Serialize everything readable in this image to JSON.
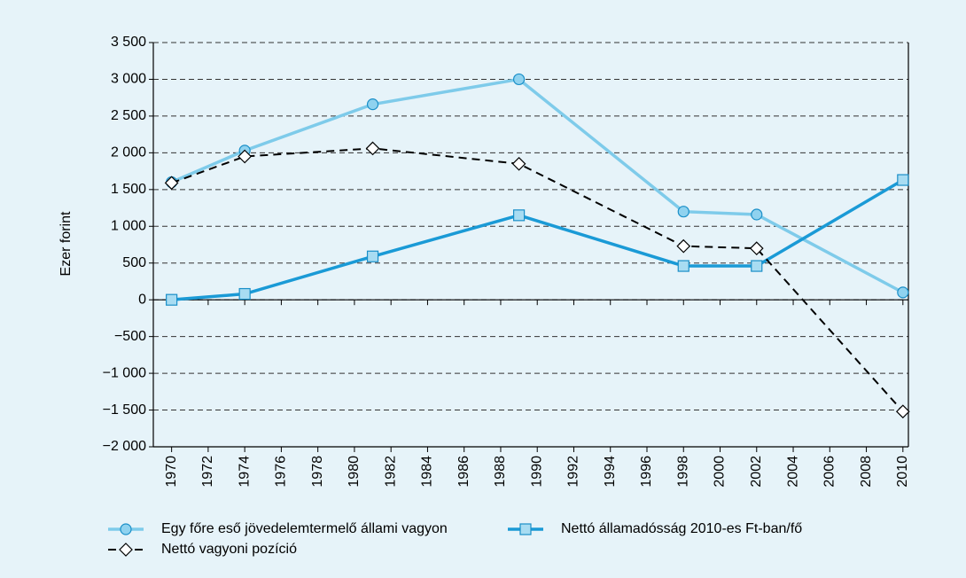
{
  "chart_data": {
    "type": "line",
    "y_label": "Ezer forint",
    "x": [
      1970,
      1974,
      1981,
      1989,
      1998,
      2002,
      2010
    ],
    "series": [
      {
        "name": "Egy főre eső jövedelemtermelő állami vagyon",
        "color": "#7ecbea",
        "marker": "circle",
        "line_style": "solid",
        "values": [
          1600,
          2030,
          2660,
          3000,
          1200,
          1160,
          100
        ]
      },
      {
        "name": "Nettó államadósság 2010-es Ft-ban/fő",
        "color": "#1a9ad6",
        "marker": "square",
        "line_style": "solid",
        "values": [
          0,
          80,
          590,
          1150,
          460,
          460,
          1630
        ]
      },
      {
        "name": "Nettó vagyoni pozíció",
        "color": "#000000",
        "marker": "diamond",
        "line_style": "dashed",
        "values": [
          1590,
          1950,
          2060,
          1850,
          730,
          700,
          -1520
        ]
      }
    ],
    "xlim": [
      1969,
      2010.3
    ],
    "xticks": [
      1970,
      1972,
      1974,
      1976,
      1978,
      1980,
      1982,
      1984,
      1986,
      1988,
      1990,
      1992,
      1994,
      1996,
      1998,
      2000,
      2002,
      2004,
      2006,
      2008,
      2010
    ],
    "ylim": [
      -2000,
      3500
    ],
    "yticks": [
      {
        "value": -2000,
        "label": "−2 000"
      },
      {
        "value": -1500,
        "label": "−1 500"
      },
      {
        "value": -1000,
        "label": "−1 000"
      },
      {
        "value": -500,
        "label": "−500"
      },
      0,
      {
        "value": 500,
        "label": "500"
      },
      {
        "value": 1000,
        "label": "1 000"
      },
      {
        "value": 1500,
        "label": "1 500"
      },
      {
        "value": 2000,
        "label": "2 000"
      },
      {
        "value": 2500,
        "label": "2 500"
      },
      {
        "value": 3000,
        "label": "3 000"
      },
      {
        "value": 3500,
        "label": "3 500"
      }
    ],
    "grid": true
  }
}
